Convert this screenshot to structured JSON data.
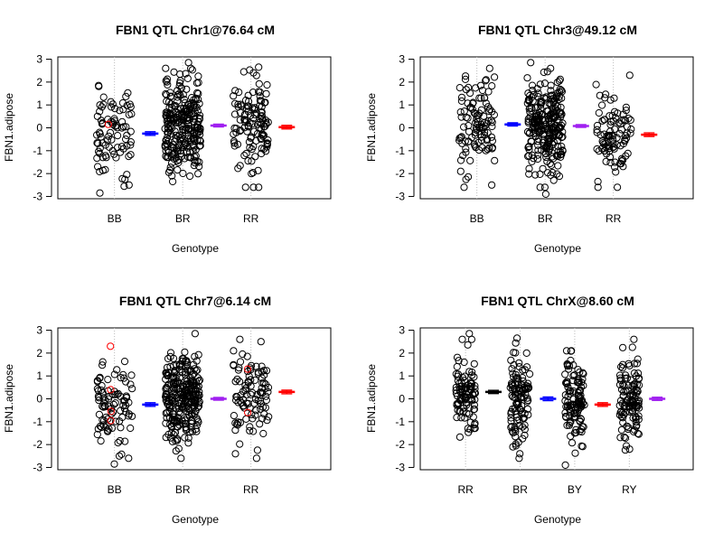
{
  "chart_data": [
    {
      "type": "scatter",
      "title": "FBN1 QTL Chr1@76.64 cM",
      "xlabel": "Genotype",
      "ylabel": "FBN1.adipose",
      "ylim": [
        -3.1,
        3.1
      ],
      "yticks": [
        -3,
        -2,
        -1,
        0,
        1,
        2,
        3
      ],
      "categories": [
        "BB",
        "BR",
        "RR"
      ],
      "counts": [
        85,
        260,
        120
      ],
      "sd": [
        1.0,
        1.0,
        1.05
      ],
      "spread": 0.26,
      "extremes": [
        [
          -2.85,
          -2.5,
          1.85
        ],
        [
          -2.35,
          2.85
        ],
        [
          -2.6,
          2.65
        ]
      ],
      "means": [
        -0.25,
        0.1,
        0.03
      ],
      "se": [
        0.08,
        0.06,
        0.08
      ],
      "mean_colors": [
        "#0000FF",
        "#A020F0",
        "#FF0000"
      ],
      "red_points": [
        [
          0,
          0.15
        ]
      ]
    },
    {
      "type": "scatter",
      "title": "FBN1 QTL Chr3@49.12 cM",
      "xlabel": "Genotype",
      "ylabel": "FBN1.adipose",
      "ylim": [
        -3.1,
        3.1
      ],
      "yticks": [
        -3,
        -2,
        -1,
        0,
        1,
        2,
        3
      ],
      "categories": [
        "BB",
        "BR",
        "RR"
      ],
      "counts": [
        110,
        260,
        95
      ],
      "sd": [
        0.95,
        1.0,
        1.0
      ],
      "spread": 0.26,
      "extremes": [
        [
          -2.5,
          2.1
        ],
        [
          -2.9,
          2.85
        ],
        [
          -2.35,
          2.3
        ]
      ],
      "means": [
        0.15,
        0.08,
        -0.3
      ],
      "se": [
        0.07,
        0.06,
        0.08
      ],
      "mean_colors": [
        "#0000FF",
        "#A020F0",
        "#FF0000"
      ],
      "red_points": []
    },
    {
      "type": "scatter",
      "title": "FBN1 QTL Chr7@6.14 cM",
      "xlabel": "Genotype",
      "ylabel": "FBN1.adipose",
      "ylim": [
        -3.1,
        3.1
      ],
      "yticks": [
        -3,
        -2,
        -1,
        0,
        1,
        2,
        3
      ],
      "categories": [
        "BB",
        "BR",
        "RR"
      ],
      "counts": [
        90,
        270,
        100
      ],
      "sd": [
        0.95,
        1.0,
        1.0
      ],
      "spread": 0.26,
      "extremes": [
        [
          -2.85,
          -2.5
        ],
        [
          -2.6,
          2.85
        ],
        [
          -2.4,
          2.5
        ]
      ],
      "means": [
        -0.25,
        0.0,
        0.3
      ],
      "se": [
        0.08,
        0.06,
        0.08
      ],
      "mean_colors": [
        "#0000FF",
        "#A020F0",
        "#FF0000"
      ],
      "red_points": [
        [
          0,
          2.3
        ],
        [
          0,
          0.4
        ],
        [
          0,
          -0.95
        ],
        [
          0,
          -0.55
        ],
        [
          2,
          1.3
        ],
        [
          2,
          -0.6
        ]
      ]
    },
    {
      "type": "scatter",
      "title": "FBN1 QTL ChrX@8.60 cM",
      "xlabel": "Genotype",
      "ylabel": "FBN1.adipose",
      "ylim": [
        -3.1,
        3.1
      ],
      "yticks": [
        -3,
        -2,
        -1,
        0,
        1,
        2,
        3
      ],
      "categories": [
        "RR",
        "BR",
        "BY",
        "RY"
      ],
      "counts": [
        100,
        110,
        115,
        115
      ],
      "sd": [
        0.9,
        1.0,
        1.0,
        0.95
      ],
      "spread": 0.18,
      "extremes": [
        [
          2.85,
          -1.3
        ],
        [
          -2.4,
          2.65
        ],
        [
          -2.9,
          2.1
        ],
        [
          -2.2,
          2.25
        ]
      ],
      "means": [
        0.3,
        0.0,
        -0.25,
        0.0
      ],
      "se": [
        0.07,
        0.08,
        0.08,
        0.07
      ],
      "mean_colors": [
        "#000000",
        "#0000FF",
        "#FF0000",
        "#A020F0"
      ],
      "red_points": []
    }
  ]
}
